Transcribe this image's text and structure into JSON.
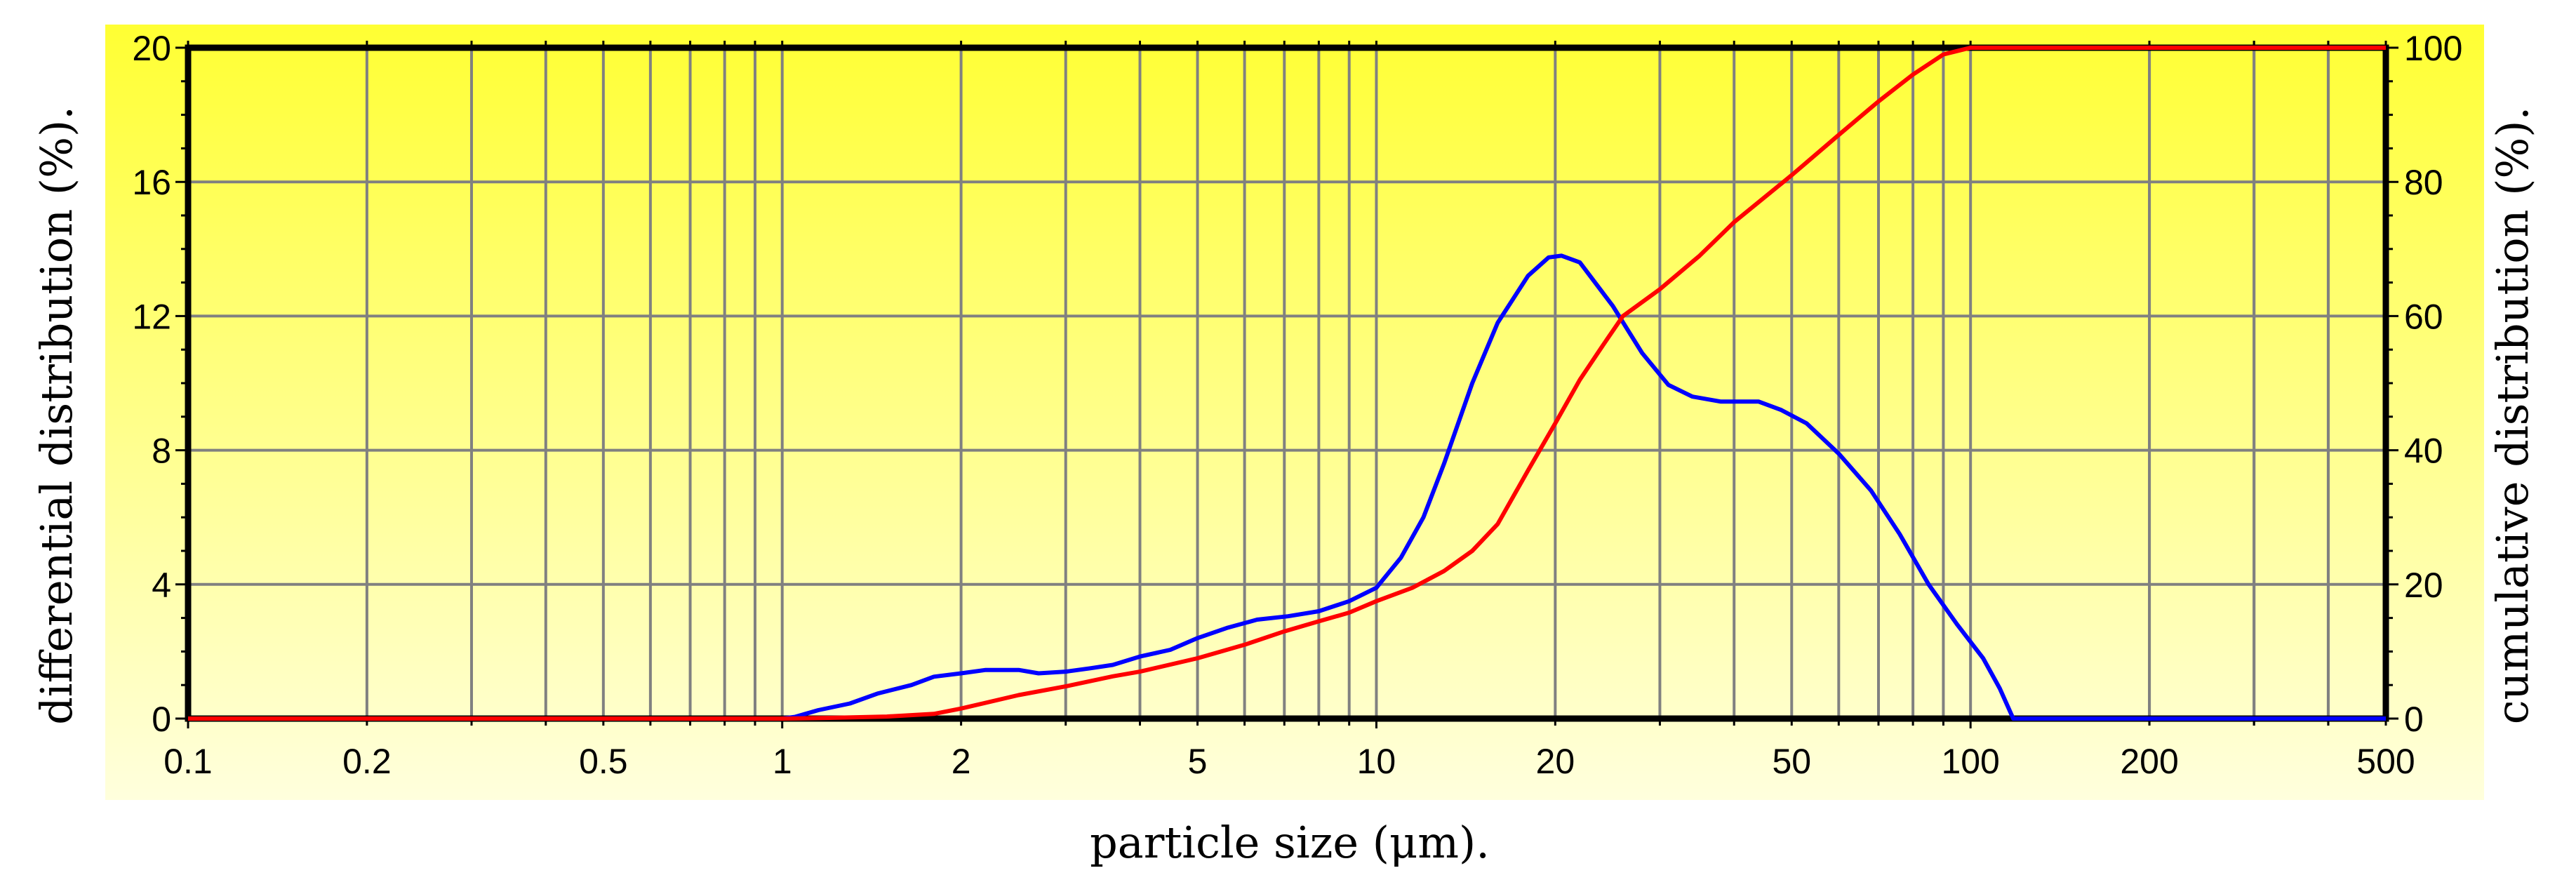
{
  "chart_data": {
    "type": "line",
    "x_scale": "log",
    "xlim": [
      0.1,
      500
    ],
    "ylim_left": [
      0,
      20
    ],
    "ylim_right": [
      0,
      100
    ],
    "xlabel": "particle size (μm).",
    "ylabel_left": "differential distribution (%).",
    "ylabel_right": "cumulative distribution (%).",
    "x_ticks": [
      0.1,
      0.2,
      0.5,
      1,
      2,
      5,
      10,
      20,
      50,
      100,
      200,
      500
    ],
    "x_tick_labels": [
      "0.1",
      "0.2",
      "0.5",
      "1",
      "2",
      "5",
      "10",
      "20",
      "50",
      "100",
      "200",
      "500"
    ],
    "y_left_ticks": [
      0,
      4,
      8,
      12,
      16,
      20
    ],
    "y_left_tick_labels": [
      "0",
      "4",
      "8",
      "12",
      "16",
      "20"
    ],
    "y_right_ticks": [
      0,
      20,
      40,
      60,
      80,
      100
    ],
    "y_right_tick_labels": [
      "0",
      "20",
      "40",
      "60",
      "80",
      "100"
    ],
    "grid": true,
    "colors": {
      "background_top": "#ffff33",
      "background_bottom": "#ffffdd",
      "grid": "#808080",
      "frame": "#000000",
      "differential_line": "#0000ff",
      "cumulative_line": "#ff0000"
    },
    "series": [
      {
        "axis": "left",
        "color": "#0000ff",
        "points": [
          [
            0.1,
            0
          ],
          [
            0.5,
            0
          ],
          [
            1.0,
            0
          ],
          [
            1.05,
            0.05
          ],
          [
            1.15,
            0.25
          ],
          [
            1.3,
            0.45
          ],
          [
            1.45,
            0.75
          ],
          [
            1.65,
            1.0
          ],
          [
            1.8,
            1.25
          ],
          [
            2.0,
            1.35
          ],
          [
            2.2,
            1.45
          ],
          [
            2.5,
            1.45
          ],
          [
            2.7,
            1.35
          ],
          [
            3.0,
            1.4
          ],
          [
            3.3,
            1.5
          ],
          [
            3.6,
            1.6
          ],
          [
            4.0,
            1.85
          ],
          [
            4.5,
            2.05
          ],
          [
            5.0,
            2.4
          ],
          [
            5.6,
            2.7
          ],
          [
            6.3,
            2.95
          ],
          [
            7.1,
            3.05
          ],
          [
            8.0,
            3.2
          ],
          [
            9.0,
            3.5
          ],
          [
            10.0,
            3.9
          ],
          [
            11.0,
            4.8
          ],
          [
            12.0,
            6.0
          ],
          [
            13.0,
            7.6
          ],
          [
            14.5,
            10.0
          ],
          [
            16.0,
            11.8
          ],
          [
            18.0,
            13.2
          ],
          [
            19.5,
            13.75
          ],
          [
            20.5,
            13.8
          ],
          [
            22.0,
            13.6
          ],
          [
            25.0,
            12.3
          ],
          [
            28.0,
            10.9
          ],
          [
            31.0,
            9.95
          ],
          [
            34.0,
            9.6
          ],
          [
            38.0,
            9.45
          ],
          [
            44.0,
            9.45
          ],
          [
            48.0,
            9.2
          ],
          [
            53.0,
            8.8
          ],
          [
            60.0,
            7.9
          ],
          [
            68.0,
            6.8
          ],
          [
            76.0,
            5.5
          ],
          [
            85.0,
            4.0
          ],
          [
            95.0,
            2.8
          ],
          [
            105.0,
            1.8
          ],
          [
            112.0,
            0.9
          ],
          [
            118.0,
            0
          ],
          [
            200.0,
            0
          ],
          [
            500.0,
            0
          ]
        ]
      },
      {
        "axis": "right",
        "color": "#ff0000",
        "points": [
          [
            0.1,
            0
          ],
          [
            0.7,
            0
          ],
          [
            1.0,
            0
          ],
          [
            1.2,
            0.1
          ],
          [
            1.5,
            0.3
          ],
          [
            1.8,
            0.7
          ],
          [
            2.0,
            1.5
          ],
          [
            2.5,
            3.5
          ],
          [
            3.0,
            4.8
          ],
          [
            3.6,
            6.3
          ],
          [
            4.0,
            7.0
          ],
          [
            5.0,
            9.0
          ],
          [
            6.0,
            11.0
          ],
          [
            7.0,
            13.0
          ],
          [
            8.0,
            14.5
          ],
          [
            9.0,
            15.8
          ],
          [
            10.0,
            17.5
          ],
          [
            11.5,
            19.5
          ],
          [
            13.0,
            22.0
          ],
          [
            14.5,
            25.0
          ],
          [
            16.0,
            29.0
          ],
          [
            18.0,
            37.0
          ],
          [
            20.0,
            44.0
          ],
          [
            22.0,
            50.5
          ],
          [
            24.0,
            55.5
          ],
          [
            26.0,
            60.0
          ],
          [
            30.0,
            64.0
          ],
          [
            35.0,
            69.0
          ],
          [
            40.0,
            74.0
          ],
          [
            50.0,
            81.0
          ],
          [
            60.0,
            87.0
          ],
          [
            70.0,
            92.0
          ],
          [
            80.0,
            96.0
          ],
          [
            90.0,
            99.0
          ],
          [
            100.0,
            100
          ],
          [
            200.0,
            100
          ],
          [
            500.0,
            100
          ]
        ]
      }
    ]
  }
}
